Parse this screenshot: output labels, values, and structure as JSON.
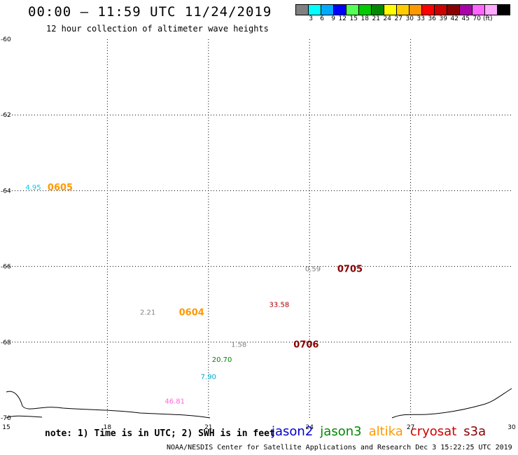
{
  "header": {
    "title": "00:00 – 11:59 UTC 11/24/2019",
    "subtitle": "12 hour collection of altimeter wave heights"
  },
  "colorbar": {
    "colors": [
      "#808080",
      "#00ffff",
      "#00aaff",
      "#0000ff",
      "#55ff55",
      "#00cc00",
      "#008800",
      "#ffff00",
      "#ffcc00",
      "#ff9900",
      "#ff0000",
      "#cc0000",
      "#880000",
      "#aa00aa",
      "#ff66ff",
      "#ffaaff",
      "#000000"
    ],
    "labels": [
      "3",
      "6",
      "9",
      "12",
      "15",
      "18",
      "21",
      "24",
      "27",
      "30",
      "33",
      "36",
      "39",
      "42",
      "45",
      "70"
    ],
    "unit": "(ft)"
  },
  "footer": {
    "note": "note: 1) Time is in UTC; 2) SWH is in feet",
    "credit": "NOAA/NESDIS Center for Satellite Applications and Research    Dec  3 15:22:25 UTC 2019",
    "satellites": [
      {
        "name": "jason2",
        "color": "#0000cc"
      },
      {
        "name": "jason3",
        "color": "#008800"
      },
      {
        "name": "altika",
        "color": "#ff9900"
      },
      {
        "name": "cryosat",
        "color": "#cc0000"
      },
      {
        "name": "s3a",
        "color": "#880000"
      }
    ]
  },
  "chart_data": {
    "type": "scatter",
    "xlim": [
      15,
      30
    ],
    "ylim": [
      -70,
      -60
    ],
    "x_ticks": [
      15,
      18,
      21,
      24,
      27,
      30
    ],
    "y_ticks": [
      -60,
      -62,
      -64,
      -66,
      -68,
      -70
    ],
    "grid": true,
    "wave_heights": [
      {
        "x": 15.8,
        "y": -63.9,
        "label": "4.95",
        "color": "#00ccee"
      },
      {
        "x": 19.2,
        "y": -67.2,
        "label": "2.21",
        "color": "#808080"
      },
      {
        "x": 24.1,
        "y": -66.05,
        "label": "0.59",
        "color": "#808080"
      },
      {
        "x": 23.1,
        "y": -67.0,
        "label": "33.58",
        "color": "#aa0000"
      },
      {
        "x": 21.9,
        "y": -68.05,
        "label": "1.58",
        "color": "#808080"
      },
      {
        "x": 21.4,
        "y": -68.45,
        "label": "20.70",
        "color": "#008800"
      },
      {
        "x": 21.0,
        "y": -68.9,
        "label": "7.90",
        "color": "#00aacc"
      },
      {
        "x": 20.0,
        "y": -69.55,
        "label": "46.81",
        "color": "#ff66dd"
      }
    ],
    "time_labels": [
      {
        "x": 16.6,
        "y": -63.9,
        "label": "0605",
        "color": "#ff9900"
      },
      {
        "x": 20.5,
        "y": -67.2,
        "label": "0604",
        "color": "#ff9900"
      },
      {
        "x": 25.2,
        "y": -66.05,
        "label": "0705",
        "color": "#880000"
      },
      {
        "x": 23.9,
        "y": -68.05,
        "label": "0706",
        "color": "#880000"
      }
    ]
  }
}
